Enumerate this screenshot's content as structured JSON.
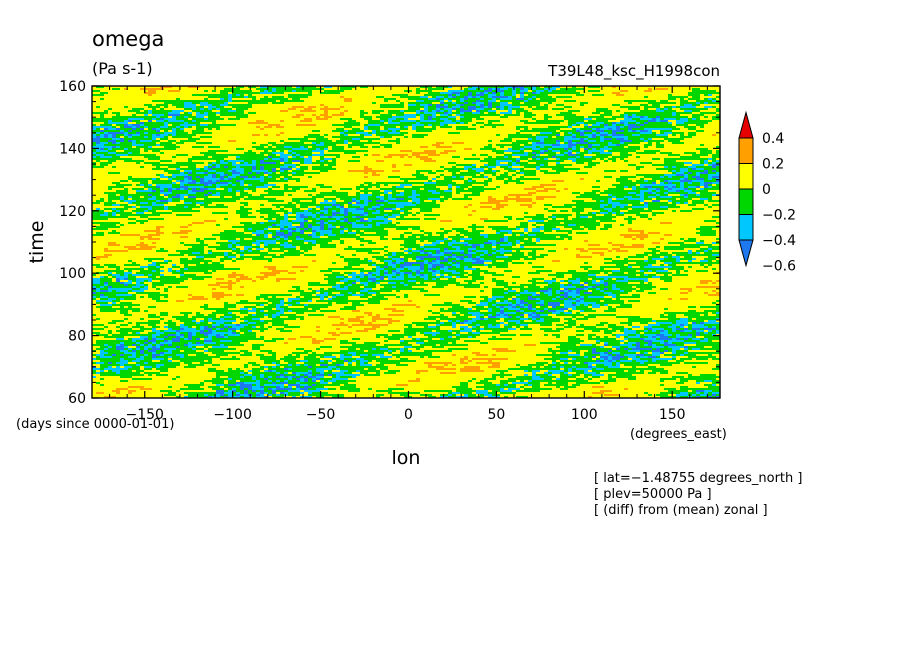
{
  "chart_data": {
    "type": "heatmap",
    "title": "omega",
    "units": "(Pa s-1)",
    "experiment": "T39L48_ksc_H1998con",
    "xlabel": "lon",
    "ylabel": "time",
    "x_units": "(degrees_east)",
    "y_units": "(days since 0000-01-01)",
    "xlim": [
      -180,
      177.1875
    ],
    "ylim": [
      60,
      160
    ],
    "xticks": [
      -150,
      -100,
      -50,
      0,
      50,
      100,
      150
    ],
    "xtick_labels": [
      "−150",
      "−100",
      "−50",
      "0",
      "50",
      "100",
      "150"
    ],
    "yticks": [
      60,
      80,
      100,
      120,
      140,
      160
    ],
    "ytick_labels": [
      "60",
      "80",
      "100",
      "120",
      "140",
      "160"
    ],
    "colorbar": {
      "levels": [
        -0.6,
        -0.4,
        -0.2,
        0,
        0.2,
        0.4
      ],
      "level_labels": [
        "−0.6",
        "−0.4",
        "−0.2",
        "0",
        "0.2",
        "0.4"
      ],
      "colors": [
        "#1e78f0",
        "#00c8ff",
        "#00d700",
        "#ffff00",
        "#ffa000",
        "#e60000"
      ],
      "extend": "both"
    },
    "notes": [
      "[ lat=−1.48755 degrees_north ]",
      "[ plev=50000 Pa ]",
      "[ (diff) from (mean) zonal ]"
    ],
    "field_summary": "Mostly 0 to 0.2 (yellow) with bands of -0.2 to -0.4 (green/cyan) propagating eastward-descending diagonally; scattered small patches of 0.2 to 0.4 (orange) and below -0.4 (blue)."
  }
}
